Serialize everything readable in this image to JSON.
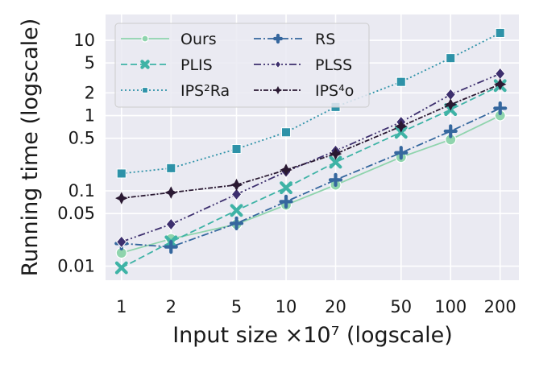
{
  "chart_data": {
    "type": "line",
    "xscale": "log",
    "yscale": "log",
    "xlabel": "Input size ×10⁷ (logscale)",
    "ylabel": "Running time (logscale)",
    "xlim": [
      0.8,
      260
    ],
    "ylim": [
      0.0065,
      22
    ],
    "x": [
      1,
      2,
      5,
      10,
      20,
      50,
      100,
      200
    ],
    "xticks": [
      {
        "value": 1,
        "label": "1"
      },
      {
        "value": 2,
        "label": "2"
      },
      {
        "value": 5,
        "label": "5"
      },
      {
        "value": 10,
        "label": "10"
      },
      {
        "value": 20,
        "label": "20"
      },
      {
        "value": 50,
        "label": "50"
      },
      {
        "value": 100,
        "label": "100"
      },
      {
        "value": 200,
        "label": "200"
      }
    ],
    "yticks": [
      {
        "value": 0.01,
        "label": "0.01"
      },
      {
        "value": 0.05,
        "label": "0.05"
      },
      {
        "value": 0.1,
        "label": "0.1"
      },
      {
        "value": 0.5,
        "label": "0.5"
      },
      {
        "value": 1,
        "label": "1"
      },
      {
        "value": 2,
        "label": "2"
      },
      {
        "value": 5,
        "label": "5"
      },
      {
        "value": 10,
        "label": "10"
      }
    ],
    "grid": true,
    "legend_position": "top-left",
    "series": [
      {
        "name": "Ours",
        "color": "#8fd4ad",
        "marker": "circle",
        "dash": "solid",
        "values": [
          0.015,
          0.023,
          0.036,
          0.065,
          0.12,
          0.28,
          0.48,
          1.0
        ]
      },
      {
        "name": "PLIS",
        "color": "#3fb3a6",
        "marker": "x",
        "dash": "dashed",
        "values": [
          0.0095,
          0.021,
          0.055,
          0.11,
          0.24,
          0.6,
          1.2,
          2.5
        ]
      },
      {
        "name": "IPS²Ra",
        "color": "#2e92a8",
        "marker": "square",
        "dash": "dotted",
        "values": [
          0.17,
          0.2,
          0.36,
          0.6,
          1.3,
          2.8,
          5.8,
          12.5
        ]
      },
      {
        "name": "RS",
        "color": "#35679e",
        "marker": "plus",
        "dash": "dashdot",
        "values": [
          0.02,
          0.018,
          0.037,
          0.072,
          0.14,
          0.32,
          0.62,
          1.25
        ]
      },
      {
        "name": "PLSS",
        "color": "#3d2f6e",
        "marker": "diamond",
        "dash": "dashdotdot",
        "values": [
          0.021,
          0.036,
          0.09,
          0.18,
          0.34,
          0.82,
          1.9,
          3.6
        ]
      },
      {
        "name": "IPS⁴o",
        "color": "#2a1932",
        "marker": "star",
        "dash": "densedashdot",
        "values": [
          0.08,
          0.095,
          0.12,
          0.19,
          0.31,
          0.72,
          1.4,
          2.6
        ]
      }
    ]
  }
}
